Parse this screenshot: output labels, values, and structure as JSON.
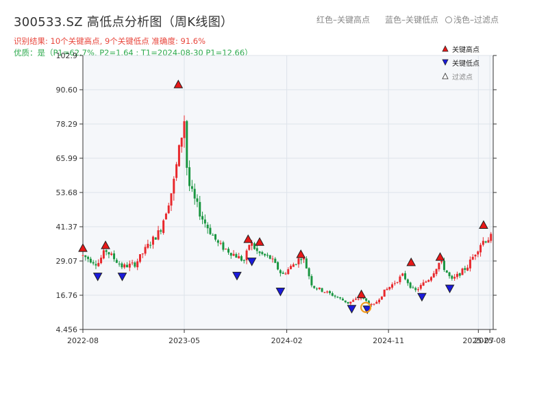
{
  "header": {
    "title": "300533.SZ 高低点分析图（周K线图）",
    "legend_red": "红色–关键高点",
    "legend_blue": "蓝色–关键低点",
    "legend_light": "浅色–过滤点",
    "result_text": "识别结果: 10个关键高点, 9个关键低点  准确度: 91.6%",
    "quality_text": "优质：是（P1=62.7%, P2=1.64 ; T1=2024-08-30 P1=12.66）"
  },
  "colors": {
    "up": "#e8282c",
    "down": "#1a9641",
    "high_marker": "#e81818",
    "low_marker": "#1a1adb",
    "filtered_ring": "#f39c20",
    "plot_bg": "#f5f7fa",
    "grid": "#dde3ea"
  },
  "chart_data": {
    "type": "candlestick",
    "title": "300533.SZ 高低点分析图（周K线图）",
    "ylim": [
      4.456,
      102.9
    ],
    "y_ticks": [
      "4.456",
      "16.76",
      "29.07",
      "41.37",
      "53.68",
      "65.99",
      "78.29",
      "90.60",
      "102.9"
    ],
    "y_tick_values": [
      4.456,
      16.76,
      29.07,
      41.37,
      53.68,
      65.99,
      78.29,
      90.6,
      102.9
    ],
    "x_ticks": [
      "2022-08",
      "2023-05",
      "2024-02",
      "2024-11",
      "2025-07",
      "2025-08"
    ],
    "x_tick_dates": [
      "2022-08-01",
      "2023-05-01",
      "2024-02-01",
      "2024-11-01",
      "2025-07-01",
      "2025-08-01"
    ],
    "xlim": [
      "2022-08-01",
      "2025-08-10"
    ],
    "price_waypoints": [
      [
        "2022-08-01",
        31
      ],
      [
        "2022-09-10",
        28
      ],
      [
        "2022-10-01",
        33
      ],
      [
        "2022-11-15",
        27
      ],
      [
        "2022-12-20",
        28
      ],
      [
        "2023-01-20",
        34
      ],
      [
        "2023-02-25",
        40
      ],
      [
        "2023-04-01",
        56
      ],
      [
        "2023-05-01",
        80
      ],
      [
        "2023-05-10",
        58
      ],
      [
        "2023-05-25",
        52
      ],
      [
        "2023-06-20",
        44
      ],
      [
        "2023-08-01",
        35
      ],
      [
        "2023-10-10",
        29
      ],
      [
        "2023-10-25",
        36
      ],
      [
        "2023-11-15",
        32
      ],
      [
        "2023-12-20",
        30
      ],
      [
        "2024-01-20",
        24
      ],
      [
        "2024-02-20",
        28
      ],
      [
        "2024-03-15",
        31
      ],
      [
        "2024-04-10",
        20
      ],
      [
        "2024-06-01",
        17
      ],
      [
        "2024-07-15",
        14
      ],
      [
        "2024-08-20",
        16
      ],
      [
        "2024-09-20",
        12.7
      ],
      [
        "2024-10-20",
        18
      ],
      [
        "2024-12-10",
        24
      ],
      [
        "2025-01-10",
        18
      ],
      [
        "2025-02-20",
        23
      ],
      [
        "2025-03-20",
        29
      ],
      [
        "2025-04-20",
        22
      ],
      [
        "2025-06-01",
        27
      ],
      [
        "2025-07-10",
        36
      ],
      [
        "2025-08-10",
        38
      ]
    ],
    "key_highs": [
      {
        "date": "2022-08-01",
        "value": 33.7
      },
      {
        "date": "2022-10-01",
        "value": 34.7
      },
      {
        "date": "2023-04-15",
        "value": 92.5
      },
      {
        "date": "2023-10-20",
        "value": 36.9
      },
      {
        "date": "2023-11-20",
        "value": 35.9
      },
      {
        "date": "2024-03-10",
        "value": 31.5
      },
      {
        "date": "2024-08-20",
        "value": 17.1
      },
      {
        "date": "2025-01-01",
        "value": 28.6
      },
      {
        "date": "2025-03-20",
        "value": 30.5
      },
      {
        "date": "2025-07-15",
        "value": 42.0
      }
    ],
    "key_lows": [
      {
        "date": "2022-09-10",
        "value": 23.5
      },
      {
        "date": "2022-11-15",
        "value": 23.5
      },
      {
        "date": "2023-09-20",
        "value": 23.8
      },
      {
        "date": "2023-10-30",
        "value": 28.9
      },
      {
        "date": "2024-01-15",
        "value": 18.1
      },
      {
        "date": "2024-07-25",
        "value": 11.9
      },
      {
        "date": "2024-09-05",
        "value": 11.7
      },
      {
        "date": "2025-01-30",
        "value": 16.2
      },
      {
        "date": "2025-04-15",
        "value": 19.2
      }
    ],
    "filtered_points": [
      {
        "date": "2024-09-01",
        "value": 12.4
      }
    ],
    "legend": {
      "placement": "top-right",
      "high_label": "关键高点",
      "low_label": "关键低点",
      "filtered_label": "过滤点"
    },
    "grid": true
  }
}
